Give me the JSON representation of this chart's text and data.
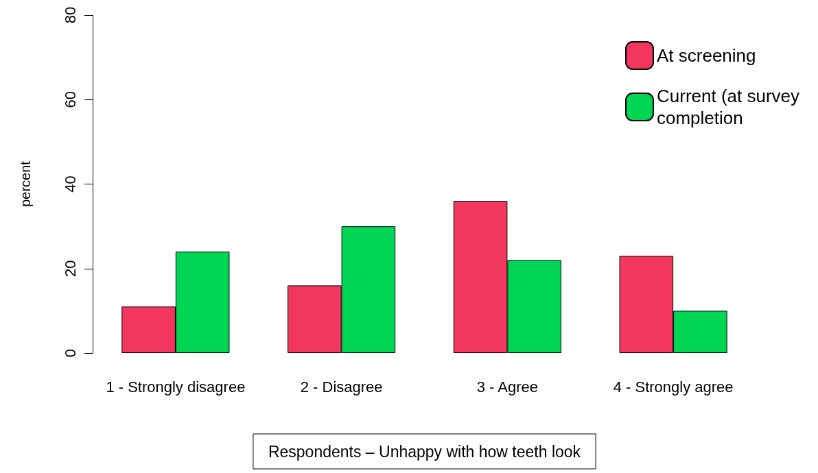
{
  "chart_data": {
    "type": "bar",
    "ylabel": "percent",
    "xlabel": "Respondents – Unhappy with how teeth look",
    "categories": [
      "1 - Strongly disagree",
      "2 - Disagree",
      "3 - Agree",
      "4 - Strongly agree"
    ],
    "series": [
      {
        "name": "At screening",
        "color": "#f2365e",
        "values": [
          11,
          16,
          36,
          23
        ]
      },
      {
        "name": "Current (at survey completion",
        "color": "#00d654",
        "values": [
          24,
          30,
          22,
          10
        ]
      }
    ],
    "ylim": [
      0,
      80
    ],
    "yticks": [
      0,
      20,
      40,
      60,
      80
    ],
    "grid": false,
    "legend": "top right"
  }
}
